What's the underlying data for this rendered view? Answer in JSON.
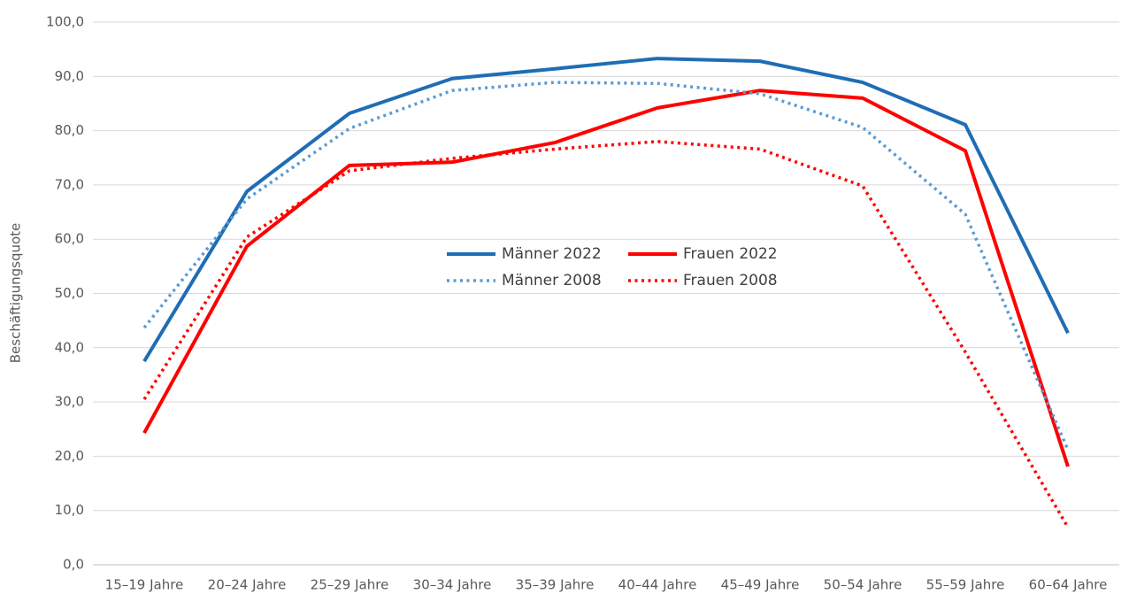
{
  "chart_data": {
    "type": "line",
    "y_label": "Beschäftigungsquote",
    "categories": [
      "15–19 Jahre",
      "20–24 Jahre",
      "25–29 Jahre",
      "30–34 Jahre",
      "35–39 Jahre",
      "40–44 Jahre",
      "45–49 Jahre",
      "50–54 Jahre",
      "55–59 Jahre",
      "60–64 Jahre"
    ],
    "series": [
      {
        "name": "Männer 2022",
        "color": "#1f6db5",
        "dash": "solid",
        "values": [
          37.5,
          68.8,
          83.2,
          89.6,
          91.4,
          93.3,
          92.8,
          88.9,
          81.1,
          42.7
        ]
      },
      {
        "name": "Frauen 2022",
        "color": "#ff0000",
        "dash": "solid",
        "values": [
          24.3,
          58.7,
          73.6,
          74.2,
          77.8,
          84.2,
          87.4,
          86.0,
          76.3,
          18.1
        ]
      },
      {
        "name": "Männer 2008",
        "color": "#5b9bd5",
        "dash": "dotted",
        "values": [
          43.7,
          67.4,
          80.4,
          87.4,
          88.9,
          88.7,
          86.8,
          80.6,
          64.6,
          21.2
        ]
      },
      {
        "name": "Frauen 2008",
        "color": "#ff0000",
        "dash": "dotted",
        "values": [
          30.5,
          60.4,
          72.6,
          74.9,
          76.6,
          78.0,
          76.6,
          69.8,
          39.2,
          6.9
        ]
      }
    ],
    "ylim": [
      0,
      100
    ],
    "yticks": [
      {
        "value": 0,
        "label": "0,0"
      },
      {
        "value": 10,
        "label": "10,0"
      },
      {
        "value": 20,
        "label": "20,0"
      },
      {
        "value": 30,
        "label": "30,0"
      },
      {
        "value": 40,
        "label": "40,0"
      },
      {
        "value": 50,
        "label": "50,0"
      },
      {
        "value": 60,
        "label": "60,0"
      },
      {
        "value": 70,
        "label": "70,0"
      },
      {
        "value": 80,
        "label": "80,0"
      },
      {
        "value": 90,
        "label": "90,0"
      },
      {
        "value": 100,
        "label": "100,0"
      }
    ],
    "grid": true,
    "legend": "center"
  }
}
